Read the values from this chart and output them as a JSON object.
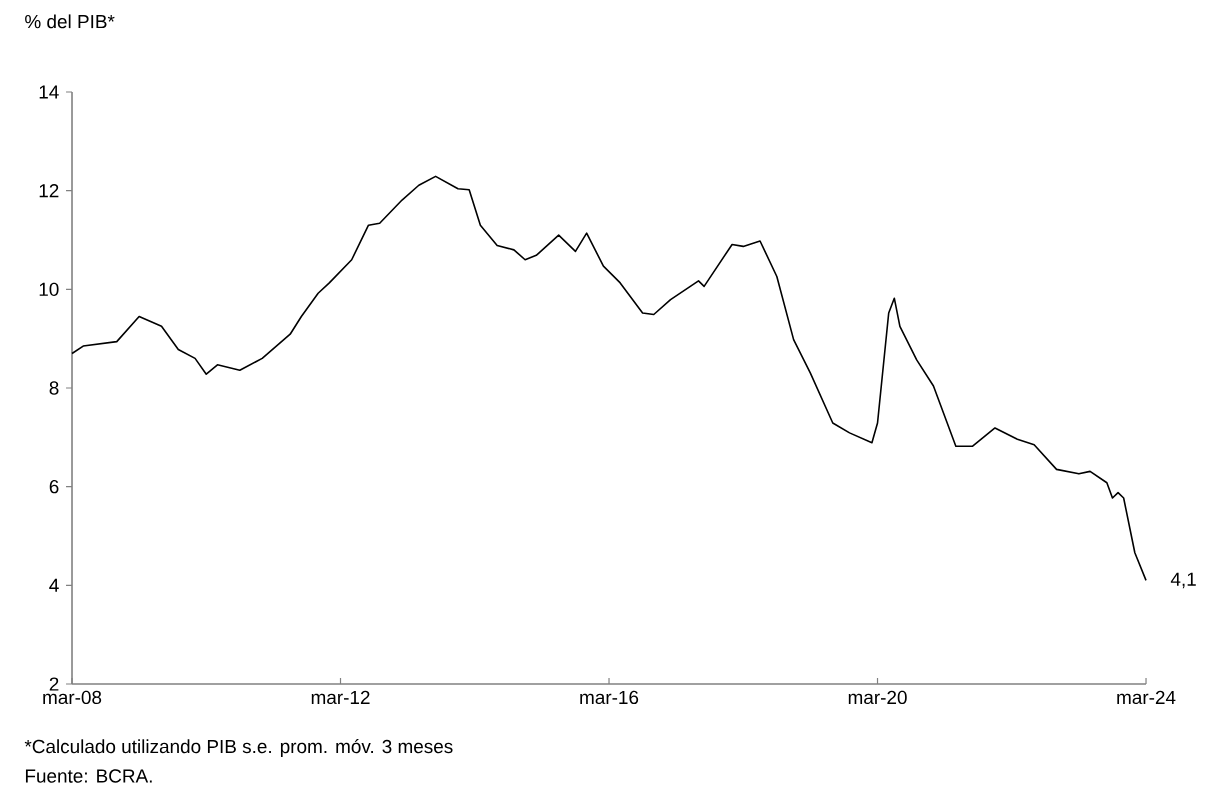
{
  "chart_data": {
    "type": "line",
    "ylabel": "% del PIB*",
    "x": [
      "2008-03",
      "2008-05",
      "2008-11",
      "2009-03",
      "2009-07",
      "2009-10",
      "2010-01",
      "2010-03",
      "2010-05",
      "2010-09",
      "2011-01",
      "2011-06",
      "2011-08",
      "2011-11",
      "2012-01",
      "2012-05",
      "2012-08",
      "2012-10",
      "2013-02",
      "2013-05",
      "2013-08",
      "2013-12",
      "2014-02",
      "2014-04",
      "2014-07",
      "2014-10",
      "2014-12",
      "2015-02",
      "2015-06",
      "2015-09",
      "2015-11",
      "2016-02",
      "2016-05",
      "2016-09",
      "2016-11",
      "2017-02",
      "2017-07",
      "2017-08",
      "2018-01",
      "2018-03",
      "2018-06",
      "2018-09",
      "2018-12",
      "2019-03",
      "2019-07",
      "2019-10",
      "2020-02",
      "2020-03",
      "2020-05",
      "2020-06",
      "2020-07",
      "2020-10",
      "2021-01",
      "2021-05",
      "2021-08",
      "2021-12",
      "2022-04",
      "2022-07",
      "2022-11",
      "2023-03",
      "2023-05",
      "2023-08",
      "2023-09",
      "2023-10",
      "2023-11",
      "2024-01",
      "2024-03"
    ],
    "values": [
      8.7,
      8.85,
      8.94,
      9.45,
      9.25,
      8.78,
      8.6,
      8.28,
      8.47,
      8.36,
      8.6,
      9.09,
      9.45,
      9.92,
      10.13,
      10.6,
      11.3,
      11.34,
      11.81,
      12.11,
      12.29,
      12.04,
      12.02,
      11.3,
      10.89,
      10.8,
      10.6,
      10.69,
      11.1,
      10.77,
      11.14,
      10.47,
      10.13,
      9.52,
      9.49,
      9.79,
      10.17,
      10.06,
      10.91,
      10.87,
      10.98,
      10.26,
      8.98,
      8.3,
      7.29,
      7.09,
      6.89,
      7.29,
      9.52,
      9.82,
      9.25,
      8.57,
      8.04,
      6.82,
      6.82,
      7.19,
      6.96,
      6.85,
      6.35,
      6.26,
      6.31,
      6.08,
      5.77,
      5.88,
      5.77,
      4.66,
      4.1
    ],
    "color": "#000000",
    "marker": "none",
    "line_style": "solid",
    "xlim": [
      "2008-03",
      "2024-03"
    ],
    "xticks": [
      {
        "value": "2008-03",
        "label": "mar-08"
      },
      {
        "value": "2012-03",
        "label": "mar-12"
      },
      {
        "value": "2016-03",
        "label": "mar-16"
      },
      {
        "value": "2020-03",
        "label": "mar-20"
      },
      {
        "value": "2024-03",
        "label": "mar-24"
      }
    ],
    "ylim": [
      2,
      14
    ],
    "yticks": [
      2,
      4,
      6,
      8,
      10,
      12,
      14
    ],
    "annotations": [
      {
        "text": "4,1",
        "x": "2024-03",
        "y": 4.1
      },
      "*Calculado utilizando PIB s.e. prom. móv. 3 meses",
      "Fuente: BCRA."
    ]
  }
}
